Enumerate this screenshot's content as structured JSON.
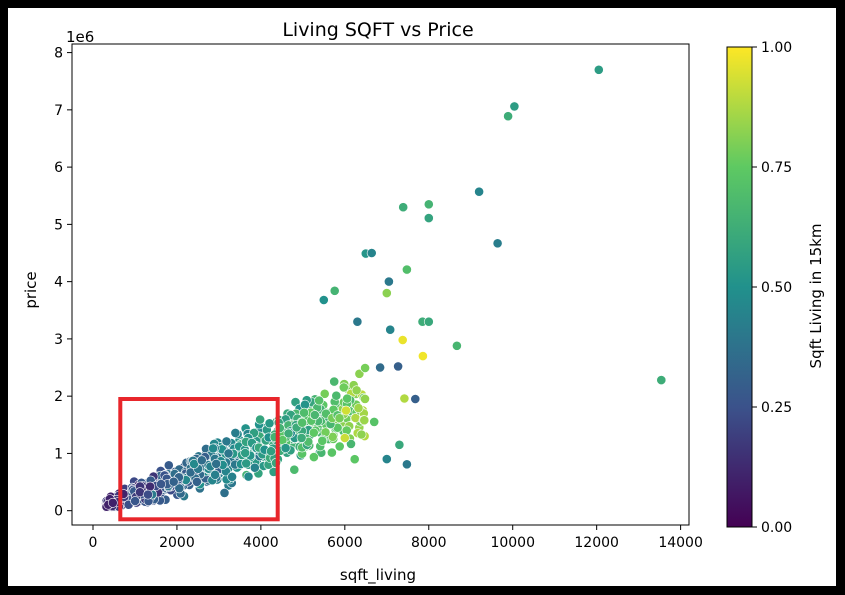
{
  "chart_data": {
    "type": "scatter",
    "title": "Living SQFT vs Price",
    "xlabel": "sqft_living",
    "ylabel": "price",
    "y_offset_label": "1e6",
    "y_multiplier": 1000000,
    "xlim": [
      -500,
      14200
    ],
    "ylim": [
      -0.25,
      8.15
    ],
    "xticks": [
      0,
      2000,
      4000,
      6000,
      8000,
      10000,
      12000,
      14000
    ],
    "yticks": [
      0,
      1,
      2,
      3,
      4,
      5,
      6,
      7,
      8
    ],
    "grid": false,
    "colorbar": {
      "label": "Sqft Living in 15km",
      "range": [
        0,
        1
      ],
      "ticks": [
        "0.00",
        "0.25",
        "0.50",
        "0.75",
        "1.00"
      ],
      "colormap": "viridis",
      "colors": [
        "#440154",
        "#3b528b",
        "#21918c",
        "#5ec962",
        "#fde725"
      ]
    },
    "highlight_box": {
      "color": "#e8262b",
      "x_range": [
        650,
        4400
      ],
      "y_range": [
        -0.15,
        1.95
      ]
    },
    "notable_points": [
      {
        "x": 13540,
        "y": 2.28,
        "c": 0.62
      },
      {
        "x": 12050,
        "y": 7.7,
        "c": 0.55
      },
      {
        "x": 10040,
        "y": 7.06,
        "c": 0.55
      },
      {
        "x": 9890,
        "y": 6.89,
        "c": 0.62
      },
      {
        "x": 9200,
        "y": 5.57,
        "c": 0.45
      },
      {
        "x": 9640,
        "y": 4.67,
        "c": 0.42
      },
      {
        "x": 8000,
        "y": 5.35,
        "c": 0.65
      },
      {
        "x": 8000,
        "y": 5.11,
        "c": 0.58
      },
      {
        "x": 7390,
        "y": 5.3,
        "c": 0.62
      },
      {
        "x": 7480,
        "y": 4.21,
        "c": 0.7
      },
      {
        "x": 6500,
        "y": 4.49,
        "c": 0.52
      },
      {
        "x": 6640,
        "y": 4.5,
        "c": 0.45
      },
      {
        "x": 7050,
        "y": 4.0,
        "c": 0.4
      },
      {
        "x": 7000,
        "y": 3.8,
        "c": 0.82
      },
      {
        "x": 8670,
        "y": 2.88,
        "c": 0.66
      },
      {
        "x": 7850,
        "y": 3.3,
        "c": 0.62
      },
      {
        "x": 8000,
        "y": 3.3,
        "c": 0.6
      },
      {
        "x": 7380,
        "y": 2.98,
        "c": 0.97
      },
      {
        "x": 7860,
        "y": 2.7,
        "c": 0.98
      },
      {
        "x": 7420,
        "y": 1.96,
        "c": 0.88
      },
      {
        "x": 7680,
        "y": 1.95,
        "c": 0.3
      },
      {
        "x": 6840,
        "y": 2.5,
        "c": 0.35
      },
      {
        "x": 7270,
        "y": 2.52,
        "c": 0.3
      },
      {
        "x": 7080,
        "y": 3.16,
        "c": 0.45
      },
      {
        "x": 6300,
        "y": 3.3,
        "c": 0.4
      },
      {
        "x": 5760,
        "y": 3.84,
        "c": 0.65
      },
      {
        "x": 5500,
        "y": 3.68,
        "c": 0.5
      },
      {
        "x": 6030,
        "y": 1.75,
        "c": 0.93
      },
      {
        "x": 6000,
        "y": 1.27,
        "c": 0.92
      },
      {
        "x": 7000,
        "y": 0.9,
        "c": 0.45
      },
      {
        "x": 7480,
        "y": 0.81,
        "c": 0.4
      },
      {
        "x": 7300,
        "y": 1.15,
        "c": 0.6
      },
      {
        "x": 6700,
        "y": 1.55,
        "c": 0.72
      }
    ],
    "dense_cluster": {
      "description_free": true,
      "point_count": 900,
      "x_range": [
        300,
        6500
      ]
    }
  }
}
